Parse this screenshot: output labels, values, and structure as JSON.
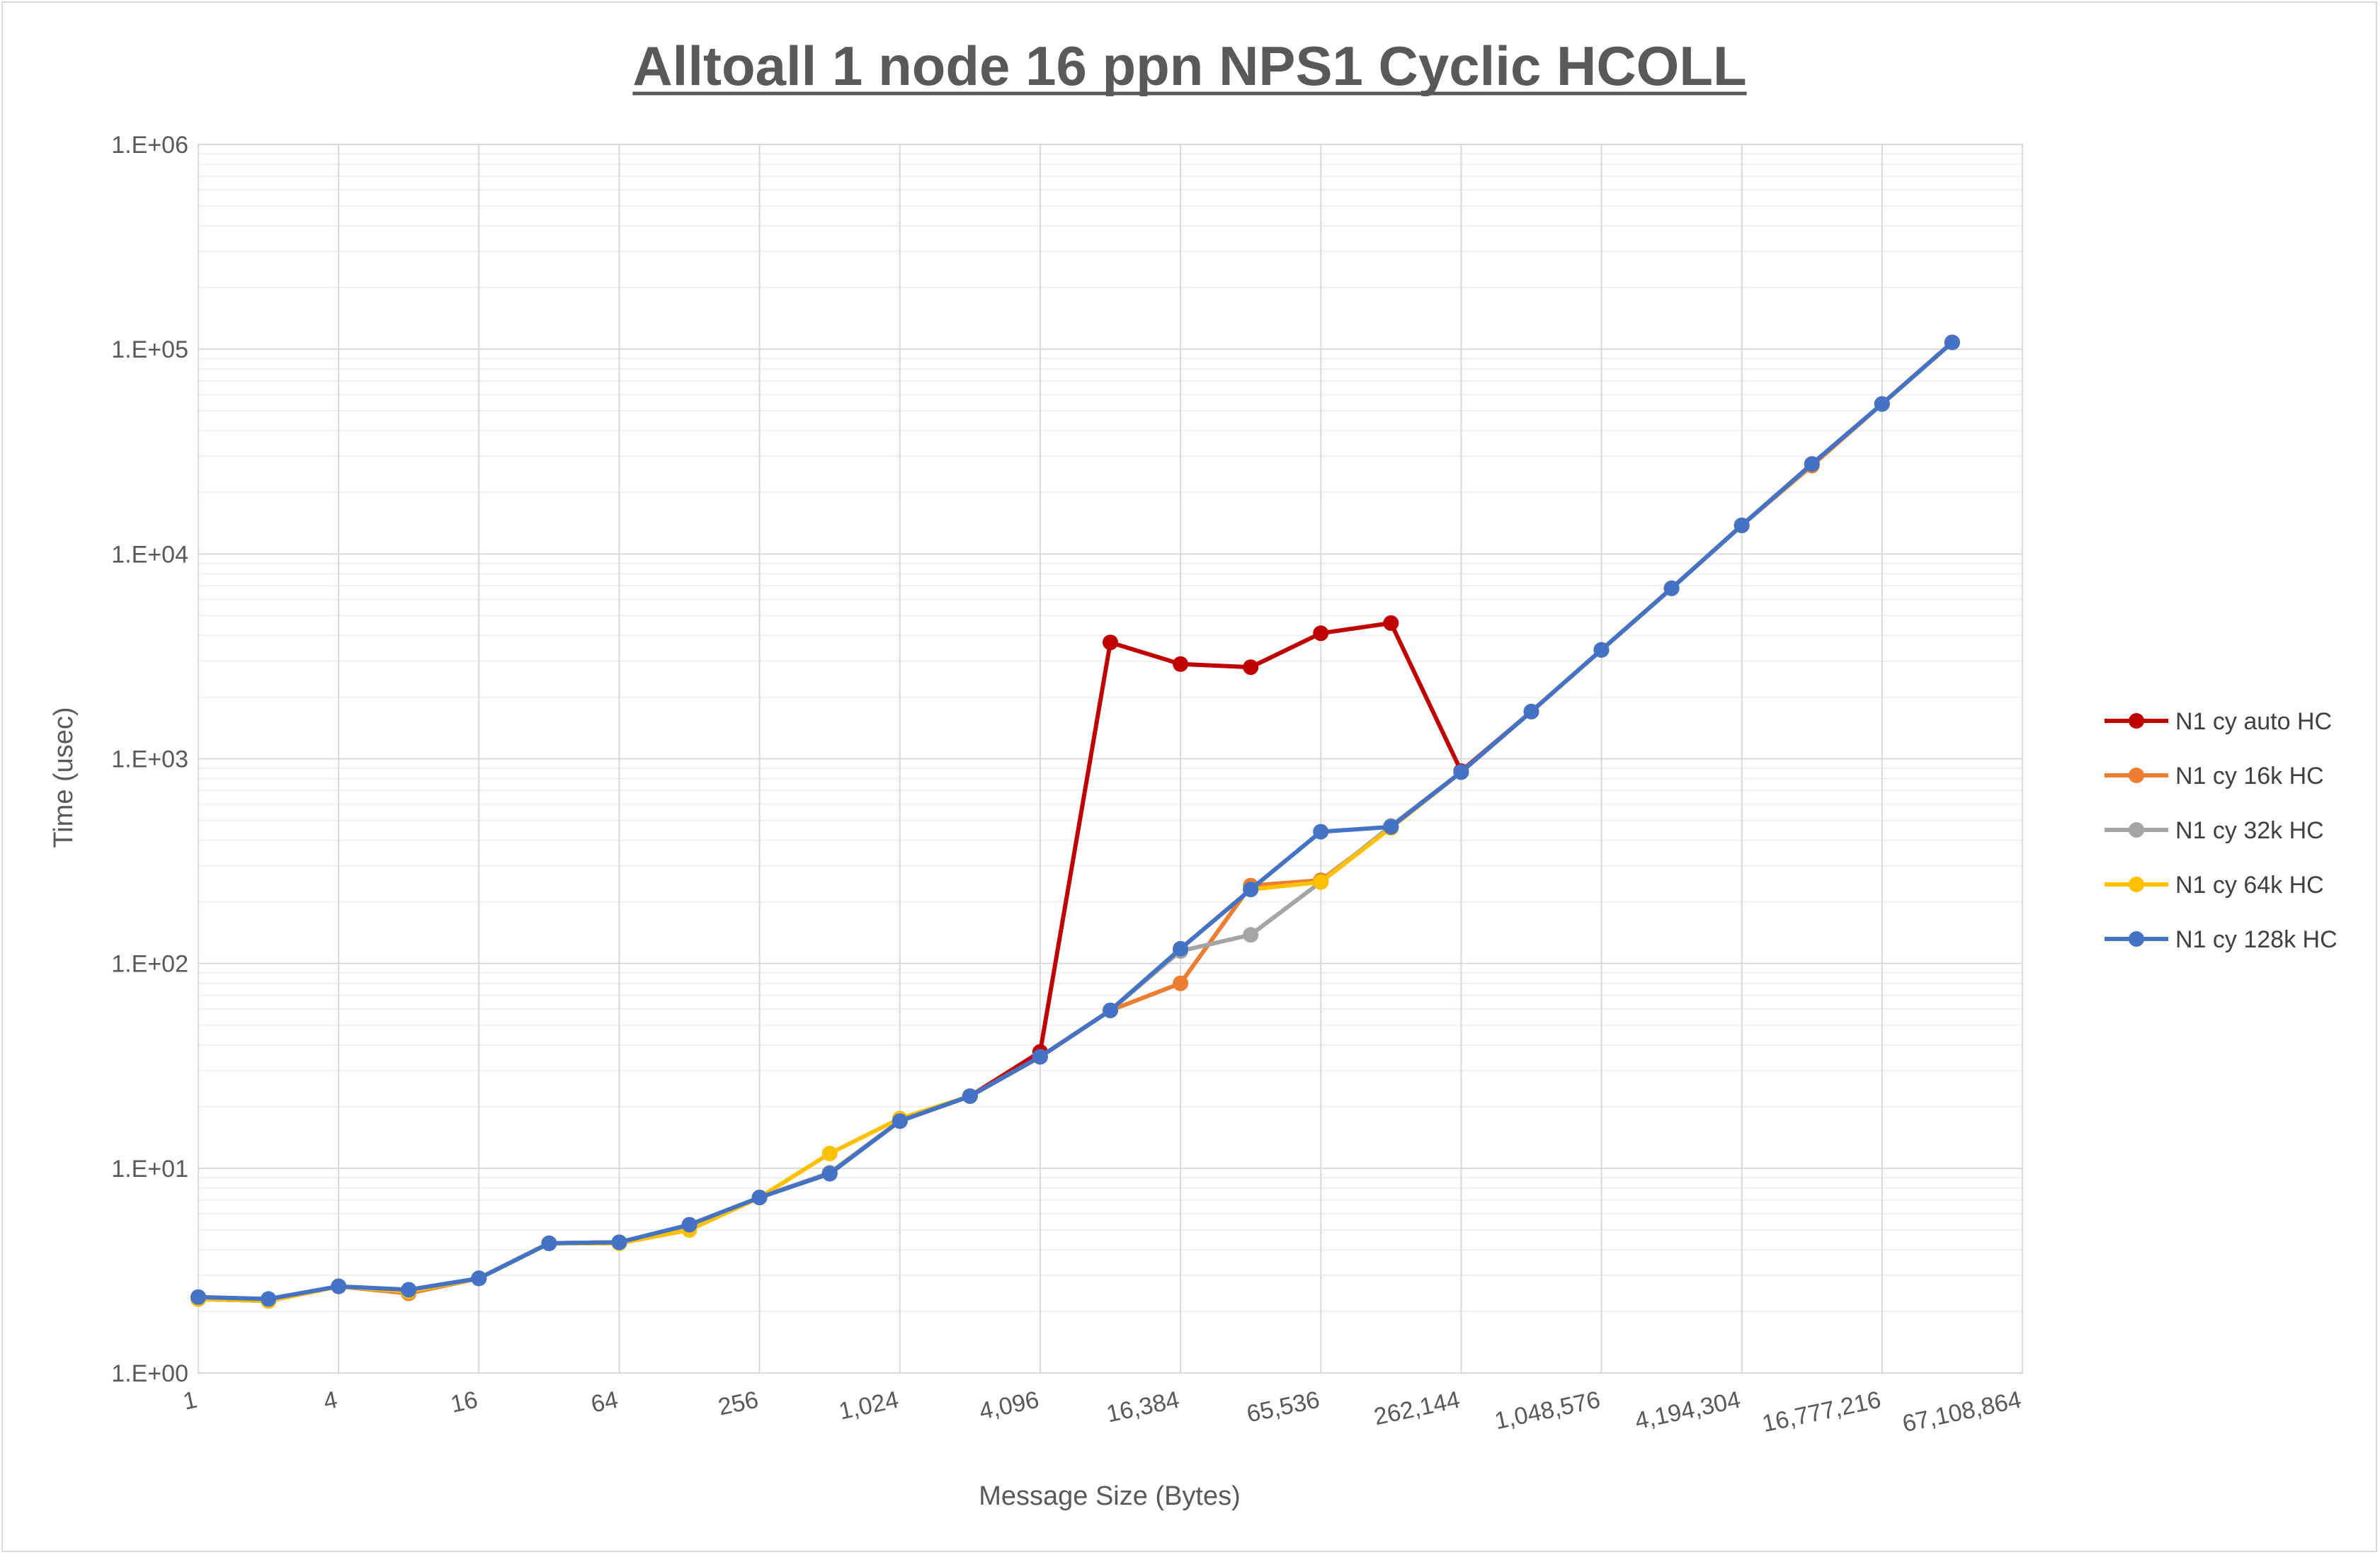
{
  "chart_data": {
    "type": "line",
    "title": "Alltoall 1 node 16 ppn NPS1 Cyclic HCOLL",
    "xlabel": "Message Size (Bytes)",
    "ylabel": "Time (usec)",
    "x_scale": "log2",
    "y_scale": "log10",
    "ylim": [
      1,
      1000000
    ],
    "x": [
      1,
      2,
      4,
      8,
      16,
      32,
      64,
      128,
      256,
      512,
      1024,
      2048,
      4096,
      8192,
      16384,
      32768,
      65536,
      131072,
      262144,
      524288,
      1048576,
      2097152,
      4194304,
      8388608,
      16777216,
      33554432,
      67108864
    ],
    "x_tick_labels": [
      "1",
      "4",
      "16",
      "64",
      "256",
      "1,024",
      "4,096",
      "16,384",
      "65,536",
      "262,144",
      "1,048,576",
      "4,194,304",
      "16,777,216",
      "67,108,864"
    ],
    "x_tick_values": [
      1,
      4,
      16,
      64,
      256,
      1024,
      4096,
      16384,
      65536,
      262144,
      1048576,
      4194304,
      16777216,
      67108864
    ],
    "y_tick_labels": [
      "1.E+00",
      "1.E+01",
      "1.E+02",
      "1.E+03",
      "1.E+04",
      "1.E+05",
      "1.E+06"
    ],
    "y_tick_values": [
      1,
      10,
      100,
      1000,
      10000,
      100000,
      1000000
    ],
    "grid": true,
    "legend_position": "right",
    "series": [
      {
        "name": "N1 cy auto HC",
        "color": "#C00000",
        "values": [
          2.3,
          2.25,
          2.65,
          2.5,
          2.9,
          4.3,
          4.35,
          5.2,
          7.2,
          9.5,
          17,
          22.5,
          37,
          3700,
          2900,
          2800,
          4100,
          4600,
          870,
          1700,
          3400,
          6800,
          13800,
          27500,
          54000,
          108000,
          null
        ]
      },
      {
        "name": "N1 cy 16k HC",
        "color": "#ED7D31",
        "values": [
          2.3,
          2.25,
          2.65,
          2.45,
          2.9,
          4.3,
          4.35,
          5.2,
          7.2,
          9.5,
          17,
          22.5,
          35,
          59,
          80,
          240,
          255,
          460,
          860,
          1700,
          3400,
          6800,
          13800,
          27000,
          54000,
          108000,
          null
        ]
      },
      {
        "name": "N1 cy 32k HC",
        "color": "#A5A5A5",
        "values": [
          2.3,
          2.25,
          2.65,
          2.5,
          2.9,
          4.3,
          4.35,
          5.2,
          7.2,
          9.5,
          17,
          22.5,
          35,
          59,
          115,
          138,
          250,
          470,
          860,
          1700,
          3400,
          6800,
          13800,
          27500,
          54000,
          108000,
          null
        ]
      },
      {
        "name": "N1 cy 64k HC",
        "color": "#FFC000",
        "values": [
          2.3,
          2.25,
          2.65,
          2.5,
          2.9,
          4.3,
          4.3,
          5.0,
          7.2,
          11.8,
          17.5,
          22.5,
          35,
          59,
          118,
          230,
          250,
          460,
          860,
          1700,
          3400,
          6800,
          13800,
          27500,
          54000,
          108000,
          null
        ]
      },
      {
        "name": "N1 cy 128k HC",
        "color": "#4472C4",
        "values": [
          2.35,
          2.3,
          2.65,
          2.55,
          2.9,
          4.3,
          4.35,
          5.3,
          7.2,
          9.4,
          17,
          22.5,
          35,
          59,
          118,
          230,
          440,
          465,
          860,
          1700,
          3400,
          6800,
          13800,
          27500,
          54000,
          108000,
          null
        ]
      }
    ]
  }
}
